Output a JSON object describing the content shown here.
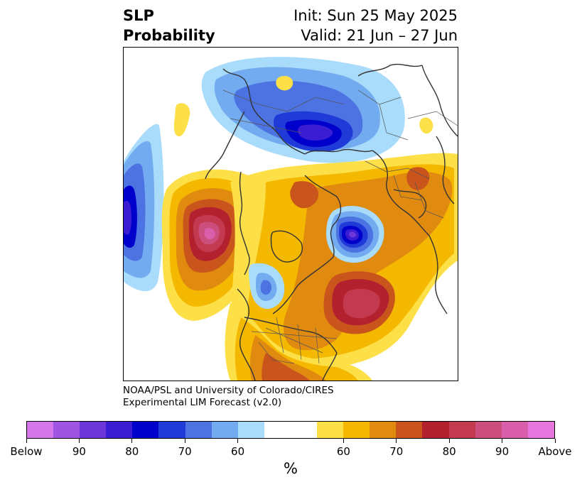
{
  "title": {
    "variable_line1": "SLP",
    "variable_line2": "Probability",
    "init": "Init: Sun 25 May 2025",
    "valid": "Valid: 21 Jun – 27 Jun"
  },
  "credit": {
    "line1": "NOAA/PSL and University of Colorado/CIRES",
    "line2": "Experimental LIM Forecast (v2.0)"
  },
  "colorbar": {
    "unit": "%",
    "colors": [
      "#d576ea",
      "#9f55e2",
      "#6b37d9",
      "#3a1cd2",
      "#0000cd",
      "#1f3ad7",
      "#4d73e3",
      "#72abef",
      "#a9dbfa",
      "#ffffff",
      "#ffffff",
      "#fde047",
      "#f4b800",
      "#e08a0f",
      "#c9551c",
      "#b2212d",
      "#c23950",
      "#cb4e7c",
      "#d95fab",
      "#e777de"
    ],
    "labels": [
      {
        "text": "Below",
        "index": 0
      },
      {
        "text": "90",
        "index": 2
      },
      {
        "text": "80",
        "index": 4
      },
      {
        "text": "70",
        "index": 6
      },
      {
        "text": "60",
        "index": 8
      },
      {
        "text": "60",
        "index": 12
      },
      {
        "text": "70",
        "index": 14
      },
      {
        "text": "80",
        "index": 16
      },
      {
        "text": "90",
        "index": 18
      },
      {
        "text": "Above",
        "index": 20
      }
    ]
  },
  "map": {
    "projection": "north-polar-stereographic",
    "field": "Sea level pressure probability",
    "features": [
      {
        "name": "below-europe-russia",
        "category": "Below",
        "peak": "80"
      },
      {
        "name": "below-north-pacific-west",
        "category": "Below",
        "peak": "90"
      },
      {
        "name": "below-greenland-sea",
        "category": "Below",
        "peak": "90"
      },
      {
        "name": "above-gulf-of-alaska",
        "category": "Above",
        "peak": "90"
      },
      {
        "name": "above-north-atlantic",
        "category": "Above",
        "peak": "90"
      },
      {
        "name": "above-north-america",
        "category": "Above",
        "peak": "70"
      }
    ]
  }
}
